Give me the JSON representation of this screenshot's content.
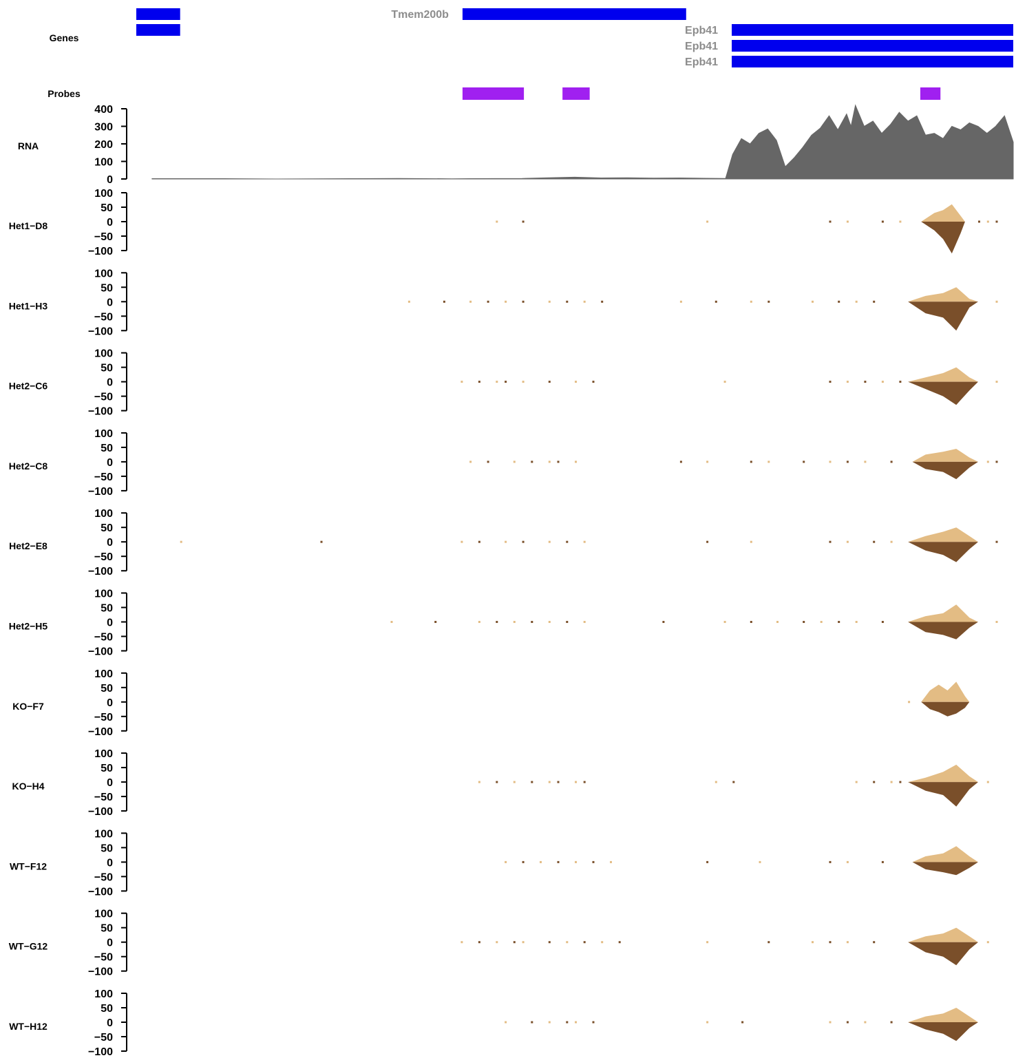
{
  "chart_data": {
    "type": "genome-browser-tracks",
    "colors": {
      "gene": "#0000ee",
      "gene_label": "#8c8c8c",
      "probe": "#a020f0",
      "rna": "#666666",
      "plus_strand": "#e3bc84",
      "minus_strand": "#7a4f2a",
      "axis": "#000000"
    },
    "genes": {
      "label": "Genes",
      "items": [
        {
          "name": "",
          "start": 0.0,
          "end": 0.05,
          "row": 0
        },
        {
          "name": "",
          "start": 0.0,
          "end": 0.05,
          "row": 1
        },
        {
          "name": "Tmem200b",
          "start": 0.372,
          "end": 0.627,
          "row": 0
        },
        {
          "name": "Epb41",
          "start": 0.679,
          "end": 1.0,
          "row": 1
        },
        {
          "name": "Epb41",
          "start": 0.679,
          "end": 1.0,
          "row": 2
        },
        {
          "name": "Epb41",
          "start": 0.679,
          "end": 1.0,
          "row": 3
        }
      ]
    },
    "probes": {
      "label": "Probes",
      "items": [
        {
          "start": 0.372,
          "end": 0.442
        },
        {
          "start": 0.486,
          "end": 0.517
        },
        {
          "start": 0.894,
          "end": 0.917
        }
      ]
    },
    "rna": {
      "label": "RNA",
      "ticks": [
        0,
        100,
        200,
        300,
        400
      ],
      "ylim": [
        0,
        400
      ],
      "profile": [
        [
          0.018,
          2
        ],
        [
          0.1,
          2
        ],
        [
          0.16,
          0
        ],
        [
          0.25,
          2
        ],
        [
          0.3,
          3
        ],
        [
          0.36,
          1
        ],
        [
          0.38,
          2
        ],
        [
          0.44,
          3
        ],
        [
          0.47,
          7
        ],
        [
          0.5,
          10
        ],
        [
          0.53,
          6
        ],
        [
          0.56,
          7
        ],
        [
          0.59,
          5
        ],
        [
          0.62,
          6
        ],
        [
          0.65,
          4
        ],
        [
          0.672,
          3
        ],
        [
          0.68,
          140
        ],
        [
          0.69,
          230
        ],
        [
          0.7,
          200
        ],
        [
          0.71,
          260
        ],
        [
          0.72,
          285
        ],
        [
          0.73,
          220
        ],
        [
          0.74,
          70
        ],
        [
          0.75,
          120
        ],
        [
          0.76,
          180
        ],
        [
          0.77,
          250
        ],
        [
          0.78,
          290
        ],
        [
          0.79,
          360
        ],
        [
          0.8,
          280
        ],
        [
          0.81,
          370
        ],
        [
          0.815,
          300
        ],
        [
          0.82,
          440
        ],
        [
          0.83,
          300
        ],
        [
          0.84,
          330
        ],
        [
          0.85,
          260
        ],
        [
          0.86,
          310
        ],
        [
          0.87,
          380
        ],
        [
          0.88,
          330
        ],
        [
          0.89,
          360
        ],
        [
          0.9,
          250
        ],
        [
          0.91,
          260
        ],
        [
          0.92,
          230
        ],
        [
          0.93,
          300
        ],
        [
          0.94,
          280
        ],
        [
          0.95,
          320
        ],
        [
          0.96,
          300
        ],
        [
          0.97,
          260
        ],
        [
          0.98,
          300
        ],
        [
          0.99,
          360
        ],
        [
          1.0,
          210
        ]
      ]
    },
    "sample_tracks": {
      "ticks": [
        100,
        50,
        0,
        -50,
        -100
      ],
      "ylim": [
        -100,
        100
      ],
      "samples": [
        {
          "name": "Het1−D8",
          "plus": [
            [
              0.895,
              0
            ],
            [
              0.91,
              30
            ],
            [
              0.92,
              40
            ],
            [
              0.93,
              60
            ],
            [
              0.94,
              20
            ],
            [
              0.945,
              0
            ]
          ],
          "minus": [
            [
              0.895,
              0
            ],
            [
              0.91,
              30
            ],
            [
              0.92,
              60
            ],
            [
              0.93,
              110
            ],
            [
              0.94,
              40
            ],
            [
              0.945,
              0
            ]
          ],
          "reads": [
            0.41,
            0.44,
            0.65,
            0.79,
            0.81,
            0.85,
            0.87,
            0.96,
            0.97,
            0.98
          ]
        },
        {
          "name": "Het1−H3",
          "plus": [
            [
              0.88,
              0
            ],
            [
              0.9,
              20
            ],
            [
              0.92,
              30
            ],
            [
              0.935,
              50
            ],
            [
              0.95,
              10
            ],
            [
              0.96,
              0
            ]
          ],
          "minus": [
            [
              0.88,
              0
            ],
            [
              0.9,
              40
            ],
            [
              0.92,
              55
            ],
            [
              0.935,
              100
            ],
            [
              0.95,
              20
            ],
            [
              0.96,
              0
            ]
          ],
          "reads": [
            0.31,
            0.35,
            0.38,
            0.4,
            0.42,
            0.44,
            0.47,
            0.49,
            0.51,
            0.53,
            0.62,
            0.66,
            0.7,
            0.72,
            0.77,
            0.8,
            0.82,
            0.84,
            0.98
          ]
        },
        {
          "name": "Het2−C6",
          "plus": [
            [
              0.88,
              0
            ],
            [
              0.9,
              15
            ],
            [
              0.92,
              30
            ],
            [
              0.935,
              50
            ],
            [
              0.95,
              15
            ],
            [
              0.96,
              0
            ]
          ],
          "minus": [
            [
              0.88,
              0
            ],
            [
              0.9,
              25
            ],
            [
              0.92,
              50
            ],
            [
              0.935,
              80
            ],
            [
              0.95,
              30
            ],
            [
              0.96,
              0
            ]
          ],
          "reads": [
            0.37,
            0.39,
            0.41,
            0.42,
            0.44,
            0.47,
            0.5,
            0.52,
            0.67,
            0.79,
            0.81,
            0.83,
            0.85,
            0.87,
            0.98
          ]
        },
        {
          "name": "Het2−C8",
          "plus": [
            [
              0.885,
              0
            ],
            [
              0.9,
              25
            ],
            [
              0.92,
              35
            ],
            [
              0.935,
              45
            ],
            [
              0.95,
              15
            ],
            [
              0.96,
              0
            ]
          ],
          "minus": [
            [
              0.885,
              0
            ],
            [
              0.9,
              25
            ],
            [
              0.92,
              35
            ],
            [
              0.935,
              60
            ],
            [
              0.95,
              20
            ],
            [
              0.96,
              0
            ]
          ],
          "reads": [
            0.38,
            0.4,
            0.43,
            0.45,
            0.47,
            0.48,
            0.5,
            0.62,
            0.65,
            0.7,
            0.72,
            0.76,
            0.79,
            0.81,
            0.83,
            0.86,
            0.97,
            0.98
          ]
        },
        {
          "name": "Het2−E8",
          "plus": [
            [
              0.88,
              0
            ],
            [
              0.9,
              20
            ],
            [
              0.92,
              35
            ],
            [
              0.935,
              50
            ],
            [
              0.95,
              20
            ],
            [
              0.96,
              0
            ]
          ],
          "minus": [
            [
              0.88,
              0
            ],
            [
              0.9,
              30
            ],
            [
              0.92,
              45
            ],
            [
              0.935,
              70
            ],
            [
              0.95,
              25
            ],
            [
              0.96,
              0
            ]
          ],
          "reads": [
            0.05,
            0.21,
            0.37,
            0.39,
            0.42,
            0.44,
            0.47,
            0.49,
            0.51,
            0.65,
            0.7,
            0.79,
            0.81,
            0.84,
            0.86,
            0.98
          ]
        },
        {
          "name": "Het2−H5",
          "plus": [
            [
              0.88,
              0
            ],
            [
              0.9,
              20
            ],
            [
              0.92,
              30
            ],
            [
              0.935,
              60
            ],
            [
              0.95,
              15
            ],
            [
              0.96,
              0
            ]
          ],
          "minus": [
            [
              0.88,
              0
            ],
            [
              0.9,
              35
            ],
            [
              0.92,
              45
            ],
            [
              0.935,
              60
            ],
            [
              0.95,
              20
            ],
            [
              0.96,
              0
            ]
          ],
          "reads": [
            0.29,
            0.34,
            0.39,
            0.41,
            0.43,
            0.45,
            0.47,
            0.49,
            0.51,
            0.6,
            0.67,
            0.7,
            0.73,
            0.76,
            0.78,
            0.8,
            0.82,
            0.85,
            0.98
          ]
        },
        {
          "name": "KO−F7",
          "plus": [
            [
              0.895,
              0
            ],
            [
              0.905,
              40
            ],
            [
              0.915,
              60
            ],
            [
              0.925,
              40
            ],
            [
              0.935,
              70
            ],
            [
              0.945,
              20
            ],
            [
              0.95,
              0
            ]
          ],
          "minus": [
            [
              0.895,
              0
            ],
            [
              0.905,
              25
            ],
            [
              0.915,
              35
            ],
            [
              0.925,
              50
            ],
            [
              0.935,
              40
            ],
            [
              0.945,
              20
            ],
            [
              0.95,
              0
            ]
          ],
          "reads": [
            0.88
          ]
        },
        {
          "name": "KO−H4",
          "plus": [
            [
              0.88,
              0
            ],
            [
              0.9,
              15
            ],
            [
              0.92,
              35
            ],
            [
              0.935,
              60
            ],
            [
              0.95,
              20
            ],
            [
              0.96,
              0
            ]
          ],
          "minus": [
            [
              0.88,
              0
            ],
            [
              0.9,
              30
            ],
            [
              0.92,
              45
            ],
            [
              0.935,
              85
            ],
            [
              0.95,
              25
            ],
            [
              0.96,
              0
            ]
          ],
          "reads": [
            0.39,
            0.41,
            0.43,
            0.45,
            0.47,
            0.48,
            0.5,
            0.51,
            0.66,
            0.68,
            0.82,
            0.84,
            0.86,
            0.87,
            0.97
          ]
        },
        {
          "name": "WT−F12",
          "plus": [
            [
              0.885,
              0
            ],
            [
              0.9,
              20
            ],
            [
              0.92,
              30
            ],
            [
              0.935,
              55
            ],
            [
              0.95,
              20
            ],
            [
              0.96,
              0
            ]
          ],
          "minus": [
            [
              0.885,
              0
            ],
            [
              0.9,
              25
            ],
            [
              0.92,
              35
            ],
            [
              0.935,
              45
            ],
            [
              0.95,
              20
            ],
            [
              0.96,
              0
            ]
          ],
          "reads": [
            0.42,
            0.44,
            0.46,
            0.48,
            0.5,
            0.52,
            0.54,
            0.65,
            0.71,
            0.79,
            0.81,
            0.85
          ]
        },
        {
          "name": "WT−G12",
          "plus": [
            [
              0.88,
              0
            ],
            [
              0.9,
              20
            ],
            [
              0.92,
              30
            ],
            [
              0.935,
              50
            ],
            [
              0.95,
              20
            ],
            [
              0.96,
              0
            ]
          ],
          "minus": [
            [
              0.88,
              0
            ],
            [
              0.9,
              35
            ],
            [
              0.92,
              50
            ],
            [
              0.935,
              80
            ],
            [
              0.95,
              25
            ],
            [
              0.96,
              0
            ]
          ],
          "reads": [
            0.37,
            0.39,
            0.41,
            0.43,
            0.44,
            0.47,
            0.49,
            0.51,
            0.53,
            0.55,
            0.65,
            0.72,
            0.77,
            0.79,
            0.81,
            0.84,
            0.97
          ]
        },
        {
          "name": "WT−H12",
          "plus": [
            [
              0.88,
              0
            ],
            [
              0.9,
              20
            ],
            [
              0.92,
              30
            ],
            [
              0.935,
              50
            ],
            [
              0.95,
              20
            ],
            [
              0.96,
              0
            ]
          ],
          "minus": [
            [
              0.88,
              0
            ],
            [
              0.9,
              25
            ],
            [
              0.92,
              40
            ],
            [
              0.935,
              65
            ],
            [
              0.95,
              20
            ],
            [
              0.96,
              0
            ]
          ],
          "reads": [
            0.42,
            0.45,
            0.47,
            0.49,
            0.5,
            0.52,
            0.65,
            0.69,
            0.79,
            0.81,
            0.83,
            0.86
          ]
        }
      ]
    }
  }
}
